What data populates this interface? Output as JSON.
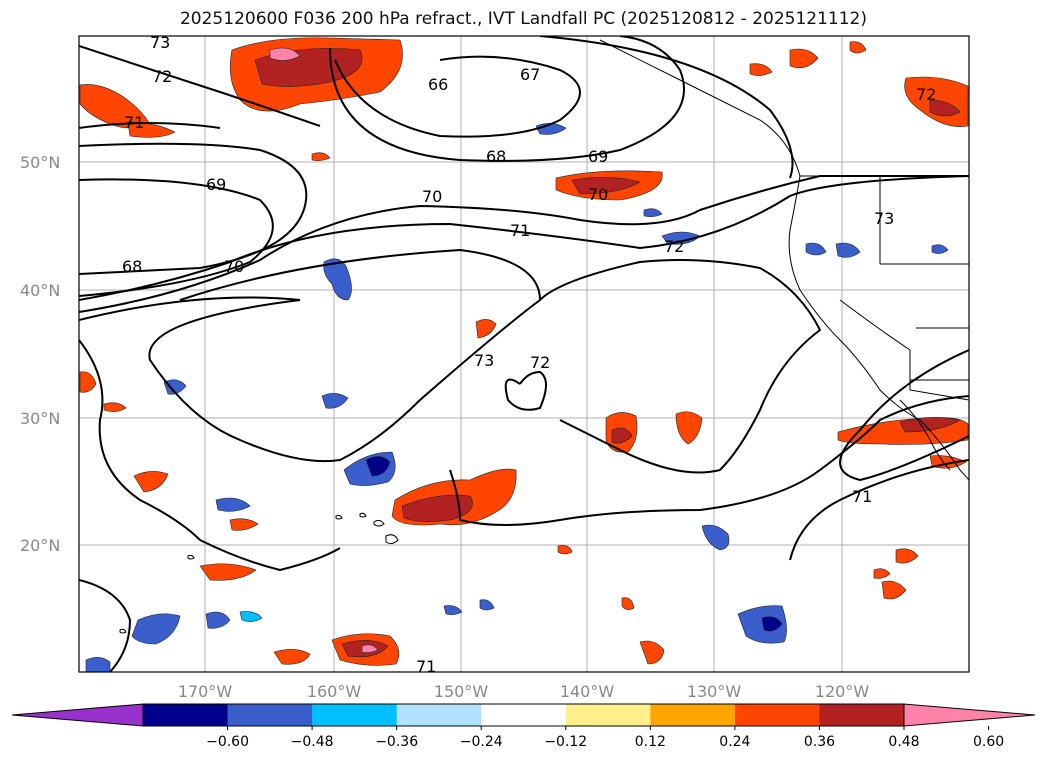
{
  "title": "2025120600 F036 200 hPa refract., IVT Landfall PC (2025120812 - 2025121112)",
  "map": {
    "lat_labels": [
      "50°N",
      "40°N",
      "30°N",
      "20°N"
    ],
    "lon_labels": [
      "170°W",
      "160°W",
      "150°W",
      "140°W",
      "130°W",
      "120°W"
    ],
    "contour_labels": [
      "73",
      "72",
      "71",
      "66",
      "67",
      "68",
      "69",
      "69",
      "70",
      "68",
      "70",
      "71",
      "70",
      "72",
      "73",
      "73",
      "72",
      "71",
      "71",
      "72"
    ]
  },
  "colorbar": {
    "ticks": [
      "−0.60",
      "−0.48",
      "−0.36",
      "−0.24",
      "−0.12",
      "0.12",
      "0.24",
      "0.36",
      "0.48",
      "0.60"
    ],
    "colors": [
      "#9932cc",
      "#00008b",
      "#3a5fcd",
      "#00bfff",
      "#b0e2ff",
      "#ffffff",
      "#fff08c",
      "#ffa500",
      "#ff4500",
      "#b22222",
      "#ff82ab"
    ]
  }
}
